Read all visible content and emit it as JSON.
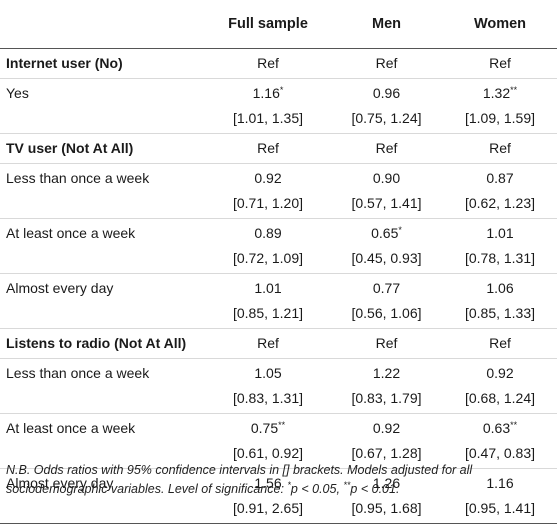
{
  "header": {
    "col0": "",
    "col1": "Full sample",
    "col2": "Men",
    "col3": "Women"
  },
  "rows": [
    {
      "type": "section",
      "label": "Internet user (No)",
      "v": [
        "Ref",
        "Ref",
        "Ref"
      ],
      "ci": [
        "",
        "",
        ""
      ],
      "sup": [
        "",
        "",
        ""
      ]
    },
    {
      "type": "item",
      "label": "Yes",
      "v": [
        "1.16",
        "0.96",
        "1.32"
      ],
      "sup": [
        "*",
        "",
        "**"
      ],
      "ci": [
        "[1.01, 1.35]",
        "[0.75, 1.24]",
        "[1.09, 1.59]"
      ]
    },
    {
      "type": "section",
      "label": "TV user (Not At All)",
      "v": [
        "Ref",
        "Ref",
        "Ref"
      ],
      "ci": [
        "",
        "",
        ""
      ],
      "sup": [
        "",
        "",
        ""
      ]
    },
    {
      "type": "item",
      "label": "Less than once a week",
      "v": [
        "0.92",
        "0.90",
        "0.87"
      ],
      "sup": [
        "",
        "",
        ""
      ],
      "ci": [
        "[0.71, 1.20]",
        "[0.57, 1.41]",
        "[0.62, 1.23]"
      ]
    },
    {
      "type": "item",
      "label": "At least once a week",
      "v": [
        "0.89",
        "0.65",
        "1.01"
      ],
      "sup": [
        "",
        "*",
        ""
      ],
      "ci": [
        "[0.72, 1.09]",
        "[0.45, 0.93]",
        "[0.78, 1.31]"
      ]
    },
    {
      "type": "item",
      "label": "Almost every day",
      "v": [
        "1.01",
        "0.77",
        "1.06"
      ],
      "sup": [
        "",
        "",
        ""
      ],
      "ci": [
        "[0.85, 1.21]",
        "[0.56, 1.06]",
        "[0.85, 1.33]"
      ]
    },
    {
      "type": "section",
      "label": "Listens to radio (Not At All)",
      "v": [
        "Ref",
        "Ref",
        "Ref"
      ],
      "ci": [
        "",
        "",
        ""
      ],
      "sup": [
        "",
        "",
        ""
      ]
    },
    {
      "type": "item",
      "label": "Less than once a week",
      "v": [
        "1.05",
        "1.22",
        "0.92"
      ],
      "sup": [
        "",
        "",
        ""
      ],
      "ci": [
        "[0.83, 1.31]",
        "[0.83, 1.79]",
        "[0.68, 1.24]"
      ]
    },
    {
      "type": "item",
      "label": "At least once a week",
      "v": [
        "0.75",
        "0.92",
        "0.63"
      ],
      "sup": [
        "**",
        "",
        "**"
      ],
      "ci": [
        "[0.61, 0.92]",
        "[0.67, 1.28]",
        "[0.47, 0.83]"
      ]
    },
    {
      "type": "item",
      "label": "Almost every day",
      "v": [
        "1.56",
        "1.26",
        "1.16"
      ],
      "sup": [
        "",
        "",
        ""
      ],
      "ci": [
        "[0.91, 2.65]",
        "[0.95, 1.68]",
        "[0.95, 1.41]"
      ]
    }
  ],
  "footnote": {
    "line1": "N.B. Odds ratios with 95% confidence intervals in [] brackets. Models adjusted for all",
    "line2_a": "sociodemographic variables. Level of significance: ",
    "line2_sup1": "*",
    "line2_b": "p < 0.05, ",
    "line2_sup2": "**",
    "line2_c": "p < 0.01."
  }
}
